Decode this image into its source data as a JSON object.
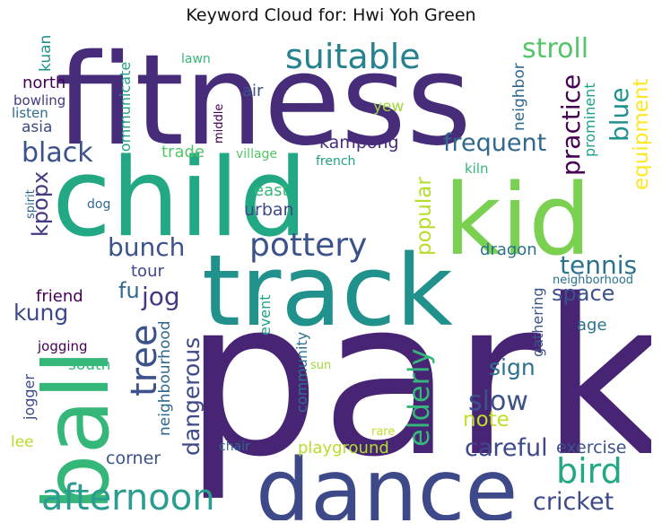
{
  "title": "Keyword Cloud for: Hwi Yoh Green",
  "words": [
    {
      "text": "park",
      "color": "#482475"
    },
    {
      "text": "fitness",
      "color": "#472c7a"
    },
    {
      "text": "child",
      "color": "#22a884"
    },
    {
      "text": "track",
      "color": "#21918c"
    },
    {
      "text": "kid",
      "color": "#7ad151"
    },
    {
      "text": "dance",
      "color": "#3e4989"
    },
    {
      "text": "ball",
      "color": "#35b779"
    },
    {
      "text": "pottery",
      "color": "#3b528b"
    },
    {
      "text": "suitable",
      "color": "#26828e"
    },
    {
      "text": "afternoon",
      "color": "#2a9d8f"
    },
    {
      "text": "tree",
      "color": "#3b528b"
    },
    {
      "text": "stroll",
      "color": "#54c568"
    },
    {
      "text": "bird",
      "color": "#22a884"
    },
    {
      "text": "elderly",
      "color": "#35b779"
    },
    {
      "text": "black",
      "color": "#3b528b"
    },
    {
      "text": "frequent",
      "color": "#31688e"
    },
    {
      "text": "practice",
      "color": "#440154"
    },
    {
      "text": "blue",
      "color": "#21918c"
    },
    {
      "text": "equipment",
      "color": "#fde725"
    },
    {
      "text": "bunch",
      "color": "#3b528b"
    },
    {
      "text": "tennis",
      "color": "#2c728e"
    },
    {
      "text": "jog",
      "color": "#443983"
    },
    {
      "text": "popular",
      "color": "#b5de2b"
    },
    {
      "text": "dangerous",
      "color": "#3e4989"
    },
    {
      "text": "slow",
      "color": "#3b528b"
    },
    {
      "text": "careful",
      "color": "#3e4989"
    },
    {
      "text": "cricket",
      "color": "#3e4989"
    },
    {
      "text": "space",
      "color": "#3b528b"
    },
    {
      "text": "sign",
      "color": "#2c728e"
    },
    {
      "text": "note",
      "color": "#bddf26"
    },
    {
      "text": "kung",
      "color": "#3e4989"
    },
    {
      "text": "fu",
      "color": "#31688e"
    },
    {
      "text": "kpopx",
      "color": "#443983"
    },
    {
      "text": "neighbourhood",
      "color": "#31688e"
    },
    {
      "text": "community",
      "color": "#2c728e"
    },
    {
      "text": "playground",
      "color": "#b5de2b"
    },
    {
      "text": "exercise",
      "color": "#3b528b"
    },
    {
      "text": "corner",
      "color": "#3b528b"
    },
    {
      "text": "south",
      "color": "#35b779"
    },
    {
      "text": "jogger",
      "color": "#3e4989"
    },
    {
      "text": "lee",
      "color": "#b5de2b"
    },
    {
      "text": "urban",
      "color": "#3e4989"
    },
    {
      "text": "east",
      "color": "#35b779"
    },
    {
      "text": "dragon",
      "color": "#2c728e"
    },
    {
      "text": "gathering",
      "color": "#3b528b"
    },
    {
      "text": "event",
      "color": "#1fa187"
    },
    {
      "text": "tour",
      "color": "#3e4989"
    },
    {
      "text": "friend",
      "color": "#440154"
    },
    {
      "text": "kampong",
      "color": "#472c7a"
    },
    {
      "text": "trade",
      "color": "#54c568"
    },
    {
      "text": "communicate",
      "color": "#1fa187"
    },
    {
      "text": "yew",
      "color": "#a0da39"
    },
    {
      "text": "prominent",
      "color": "#1fa187"
    },
    {
      "text": "neighbor",
      "color": "#31688e"
    },
    {
      "text": "air",
      "color": "#3b528b"
    },
    {
      "text": "north",
      "color": "#440154"
    },
    {
      "text": "asia",
      "color": "#3e4989"
    },
    {
      "text": "bowling",
      "color": "#443983"
    },
    {
      "text": "listen",
      "color": "#31688e"
    },
    {
      "text": "kuan",
      "color": "#21918c"
    },
    {
      "text": "lawn",
      "color": "#35b779"
    },
    {
      "text": "village",
      "color": "#54c568"
    },
    {
      "text": "french",
      "color": "#1fa187"
    },
    {
      "text": "middle",
      "color": "#440154"
    },
    {
      "text": "kiln",
      "color": "#35b779"
    },
    {
      "text": "dog",
      "color": "#31688e"
    },
    {
      "text": "spirit",
      "color": "#31688e"
    },
    {
      "text": "age",
      "color": "#2c728e"
    },
    {
      "text": "neighborhood",
      "color": "#2c728e"
    },
    {
      "text": "jogging",
      "color": "#440154"
    },
    {
      "text": "sun",
      "color": "#a0da39"
    },
    {
      "text": "rare",
      "color": "#c2df23"
    },
    {
      "text": "chair",
      "color": "#31688e"
    }
  ]
}
